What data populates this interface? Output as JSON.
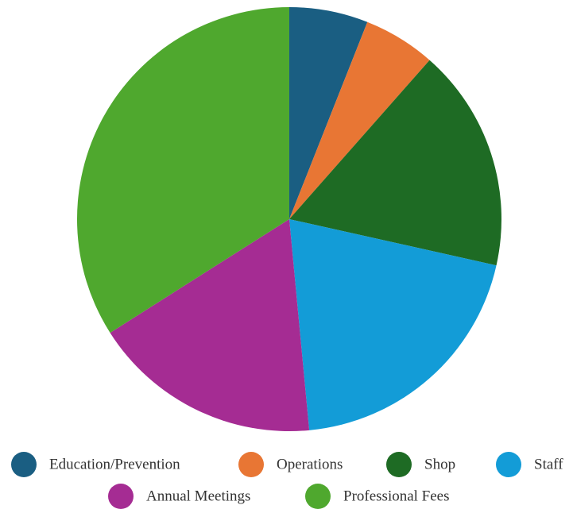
{
  "chart_data": {
    "type": "pie",
    "title": "",
    "legend_position": "bottom",
    "slices": [
      {
        "name": "Education/Prevention",
        "value": 6.0,
        "color": "#1a5e82"
      },
      {
        "name": "Operations",
        "value": 5.5,
        "color": "#e87634"
      },
      {
        "name": "Shop",
        "value": 17.0,
        "color": "#1e6b24"
      },
      {
        "name": "Staff",
        "value": 20.0,
        "color": "#139cd7"
      },
      {
        "name": "Annual Meetings",
        "value": 17.5,
        "color": "#a52c93"
      },
      {
        "name": "Professional Fees",
        "value": 34.0,
        "color": "#4fa82e"
      }
    ]
  }
}
